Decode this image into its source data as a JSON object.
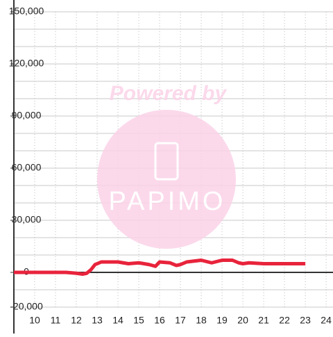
{
  "chart_data": {
    "type": "line",
    "watermark": {
      "line1": "Powered by",
      "line2": "PAPIMO"
    },
    "x": [
      9,
      11.5,
      12,
      12.3,
      12.5,
      12.7,
      12.9,
      13.2,
      14,
      14.5,
      15,
      15.5,
      15.8,
      16,
      16.5,
      16.8,
      17,
      17.3,
      18,
      18.5,
      19,
      19.5,
      19.8,
      20,
      20.3,
      21,
      23
    ],
    "series": [
      {
        "color": "#e8233b",
        "values": [
          0,
          0,
          -500,
          -1000,
          -500,
          1500,
          4500,
          6000,
          6000,
          5000,
          5500,
          4500,
          3500,
          6000,
          5500,
          4000,
          4500,
          6000,
          7000,
          5500,
          7000,
          7000,
          5500,
          5000,
          5500,
          5000,
          5000
        ]
      }
    ],
    "xlim": [
      9,
      24.33
    ],
    "xticks": [
      10,
      11,
      12,
      13,
      14,
      15,
      16,
      17,
      18,
      19,
      20,
      21,
      22,
      23,
      24
    ],
    "ylim": [
      -20000,
      150000
    ],
    "yticks": [
      {
        "value": -20000,
        "label": "-20,000"
      },
      0,
      {
        "value": 30000,
        "label": "30,000"
      },
      {
        "value": 60000,
        "label": "60,000"
      },
      {
        "value": 90000,
        "label": "90,000"
      },
      {
        "value": 120000,
        "label": "120,000"
      },
      {
        "value": 150000,
        "label": "150,000"
      }
    ],
    "yminor": [
      -10000,
      10000,
      20000,
      40000,
      50000,
      70000,
      80000,
      100000,
      110000,
      130000,
      140000
    ],
    "grid": true
  }
}
